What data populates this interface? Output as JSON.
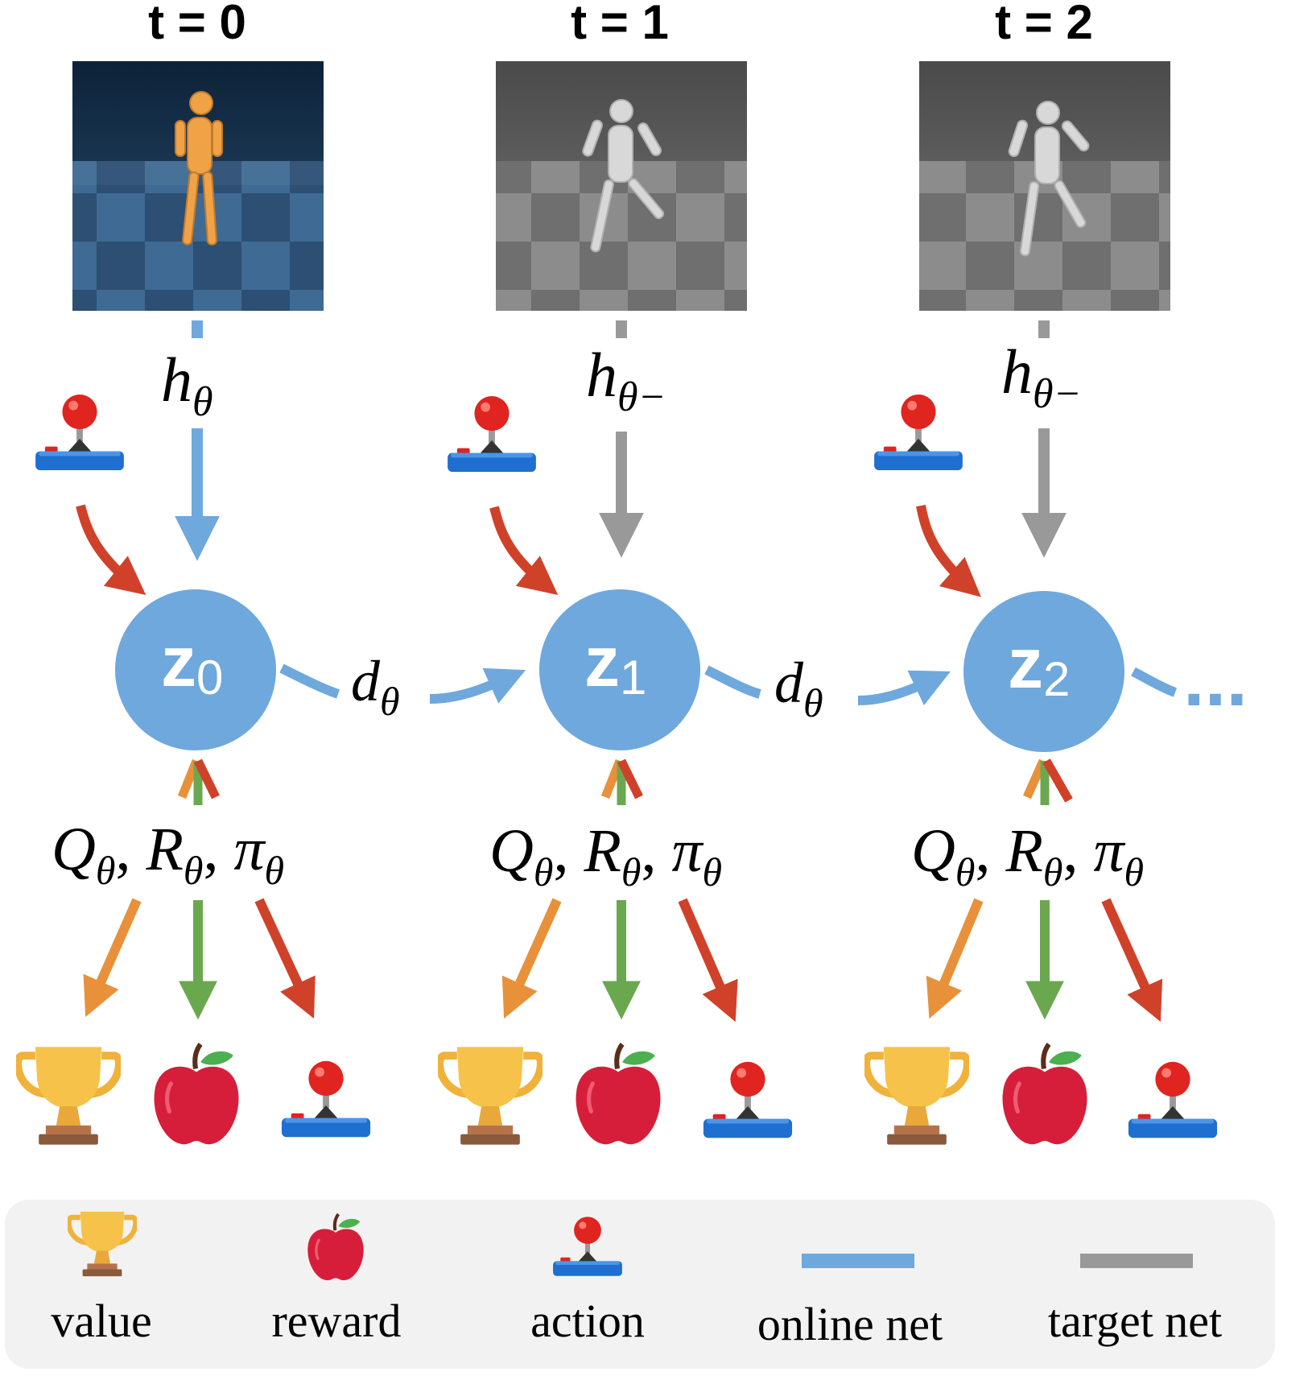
{
  "colors": {
    "online": "#6fa8dc",
    "target": "#999999",
    "action_arrow": "#d0412a",
    "value_arrow": "#e8913a",
    "reward_arrow": "#6aa84f",
    "legend_bg": "#f2f2f2",
    "state_node": "#6fa8dc"
  },
  "timesteps": [
    {
      "label": "t = 0",
      "frame": "color",
      "encoder": "h",
      "encoder_sub": "θ",
      "state_main": "z",
      "state_sub": "0",
      "heads": [
        "Q",
        "R",
        "π"
      ],
      "head_sub": "θ",
      "outputs": [
        "trophy-icon",
        "apple-icon",
        "joystick-icon"
      ]
    },
    {
      "label": "t = 1",
      "frame": "gray",
      "encoder": "h",
      "encoder_sub": "θ−",
      "state_main": "z",
      "state_sub": "1",
      "heads": [
        "Q",
        "R",
        "π"
      ],
      "head_sub": "θ",
      "outputs": [
        "trophy-icon",
        "apple-icon",
        "joystick-icon"
      ]
    },
    {
      "label": "t = 2",
      "frame": "gray",
      "encoder": "h",
      "encoder_sub": "θ−",
      "state_main": "z",
      "state_sub": "2",
      "heads": [
        "Q",
        "R",
        "π"
      ],
      "head_sub": "θ",
      "outputs": [
        "trophy-icon",
        "apple-icon",
        "joystick-icon"
      ]
    }
  ],
  "dynamics": {
    "symbol": "d",
    "sub": "θ"
  },
  "continuation": "...",
  "legend": {
    "value": "value",
    "reward": "reward",
    "action": "action",
    "online": "online net",
    "target": "target net"
  }
}
